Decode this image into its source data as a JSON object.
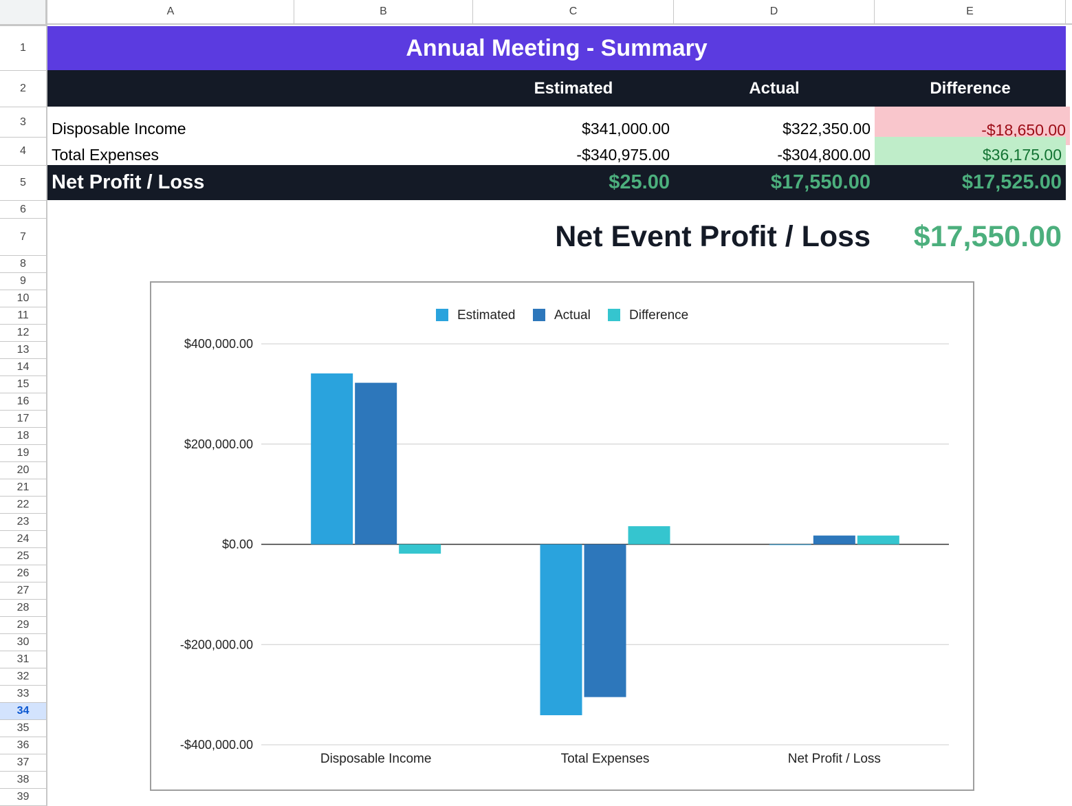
{
  "columns": [
    "A",
    "B",
    "C",
    "D",
    "E"
  ],
  "rows": [
    "1",
    "2",
    "3",
    "4",
    "5",
    "6",
    "7",
    "8",
    "9",
    "10",
    "11",
    "12",
    "13",
    "14",
    "15",
    "16",
    "17",
    "18",
    "19",
    "20",
    "21",
    "22",
    "23",
    "24",
    "25",
    "26",
    "27",
    "28",
    "29",
    "30",
    "31",
    "32",
    "33",
    "34",
    "35",
    "36",
    "37",
    "38",
    "39"
  ],
  "selected_row": "34",
  "sheet": {
    "title": "Annual Meeting - Summary",
    "headers": {
      "estimated": "Estimated",
      "actual": "Actual",
      "difference": "Difference"
    },
    "disposable_income": {
      "label": "Disposable Income",
      "estimated": "$341,000.00",
      "actual": "$322,350.00",
      "difference": "-$18,650.00"
    },
    "total_expenses": {
      "label": "Total Expenses",
      "estimated": "-$340,975.00",
      "actual": "-$304,800.00",
      "difference": "$36,175.00"
    },
    "net": {
      "label": "Net Profit / Loss",
      "estimated": "$25.00",
      "actual": "$17,550.00",
      "difference": "$17,525.00"
    },
    "event_net": {
      "label": "Net Event Profit / Loss",
      "value": "$17,550.00"
    }
  },
  "colors": {
    "title_bg": "#5b3be0",
    "header_bg": "#141a26",
    "negative_bg": "#f9c6cc",
    "negative_text": "#9c0c16",
    "positive_bg": "#bfedc9",
    "positive_text": "#137333",
    "net_green": "#4caf7d",
    "series_estimated": "#2aa3dd",
    "series_actual": "#2d77bb",
    "series_difference": "#35c5cf"
  },
  "chart_data": {
    "type": "bar",
    "categories": [
      "Disposable Income",
      "Total Expenses",
      "Net Profit / Loss"
    ],
    "series": [
      {
        "name": "Estimated",
        "values": [
          341000,
          -340975,
          25
        ]
      },
      {
        "name": "Actual",
        "values": [
          322350,
          -304800,
          17550
        ]
      },
      {
        "name": "Difference",
        "values": [
          -18650,
          36175,
          17525
        ]
      }
    ],
    "ylim": [
      -400000,
      400000
    ],
    "yticks": [
      400000,
      200000,
      0,
      -200000,
      -400000
    ],
    "ytick_labels": [
      "$400,000.00",
      "$200,000.00",
      "$0.00",
      "-$200,000.00",
      "-$400,000.00"
    ],
    "grid": true,
    "legend": "top"
  }
}
